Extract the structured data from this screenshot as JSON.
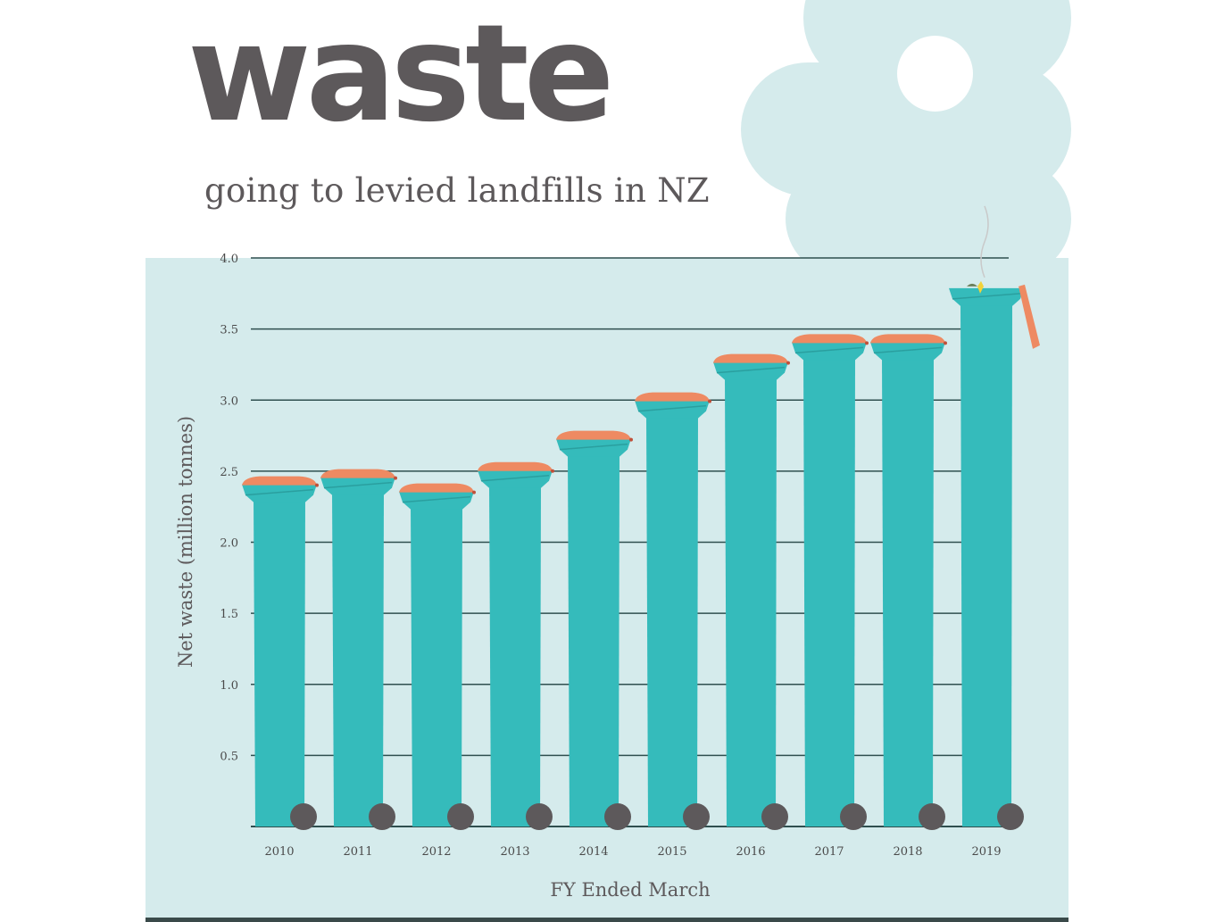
{
  "header": {
    "title": "waste",
    "subtitle": "going to levied landfills in NZ"
  },
  "colors": {
    "panel": "#d5ebec",
    "bin": "#35bbbb",
    "bin_dark": "#2a9f9f",
    "lid": "#ee8a62",
    "wheel": "#5d595b",
    "text": "#5d595b",
    "grid": "#2f4f4f"
  },
  "icons": [
    "wheelie-bin-icon",
    "bin-lid-icon",
    "wheel-icon",
    "cloud-shape"
  ],
  "chart_data": {
    "type": "bar",
    "title": "waste",
    "subtitle": "going to levied landfills in NZ",
    "xlabel": "FY Ended March",
    "ylabel": "Net waste (million tonnes)",
    "categories": [
      "2010",
      "2011",
      "2012",
      "2013",
      "2014",
      "2015",
      "2016",
      "2017",
      "2018",
      "2019"
    ],
    "values": [
      2.42,
      2.47,
      2.37,
      2.52,
      2.74,
      3.01,
      3.28,
      3.42,
      3.42,
      3.8
    ],
    "yticks": [
      "4.0",
      "3.5",
      "3.0",
      "2.5",
      "2.0",
      "1.5",
      "1.0",
      "0.5"
    ],
    "ylim": [
      0,
      4.0
    ],
    "grid": true,
    "legend": "none"
  }
}
